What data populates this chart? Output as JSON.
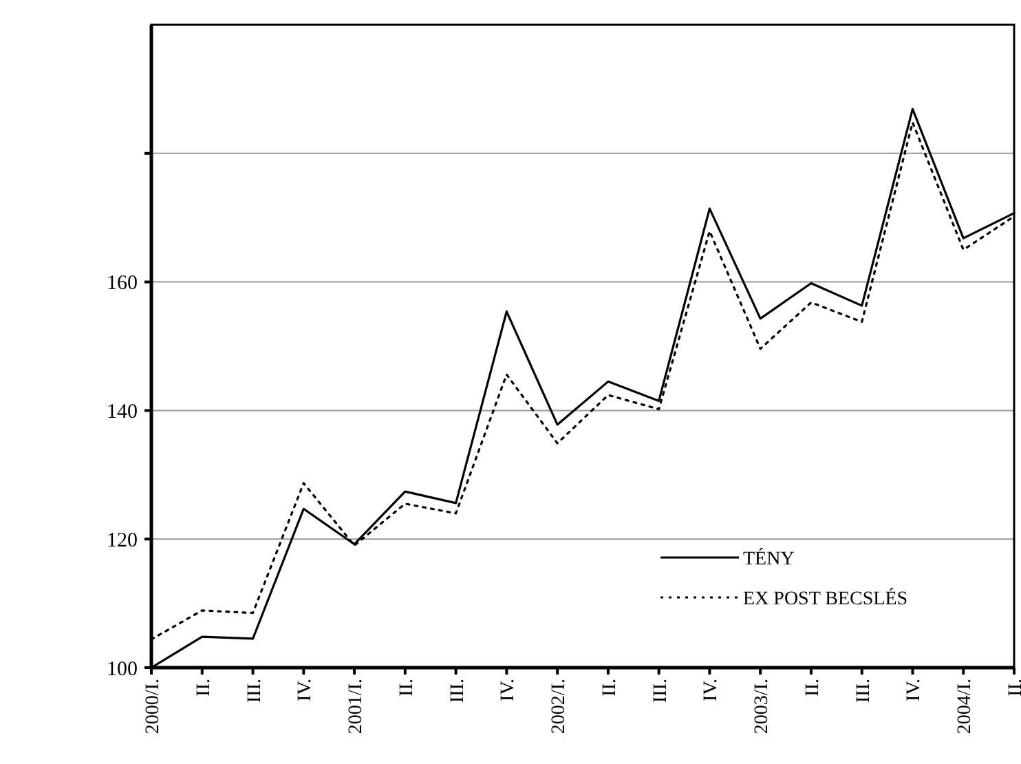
{
  "chart_data": {
    "type": "line",
    "categories": [
      "2000/I.",
      "II.",
      "III.",
      "IV.",
      "2001/I.",
      "II.",
      "III.",
      "IV.",
      "2002/I.",
      "II.",
      "III.",
      "IV.",
      "2003/I.",
      "II.",
      "III.",
      "IV.",
      "2004/I.",
      "II."
    ],
    "series": [
      {
        "name": "TÉNY",
        "color": "#000000",
        "line_style": "solid",
        "values": [
          100,
          104.8,
          104.5,
          124.7,
          119.2,
          127.4,
          125.6,
          155.4,
          137.8,
          144.5,
          141.5,
          171.4,
          154.3,
          159.8,
          156.3,
          186.9,
          166.8,
          170.7
        ]
      },
      {
        "name": "EX POST BECSLÉS",
        "color": "#000000",
        "line_style": "dotted",
        "values": [
          104.4,
          108.9,
          108.5,
          128.7,
          119,
          125.5,
          124,
          145.6,
          134.9,
          142.4,
          140.2,
          167.9,
          149.6,
          156.8,
          153.8,
          184.8,
          165,
          170.2
        ]
      }
    ],
    "ylim": [
      100,
      200
    ],
    "yticks": [
      100,
      120,
      140,
      160,
      {
        "value": 180,
        "label": null
      }
    ],
    "grid": "y",
    "legend": "bottom right",
    "marker": "none"
  }
}
